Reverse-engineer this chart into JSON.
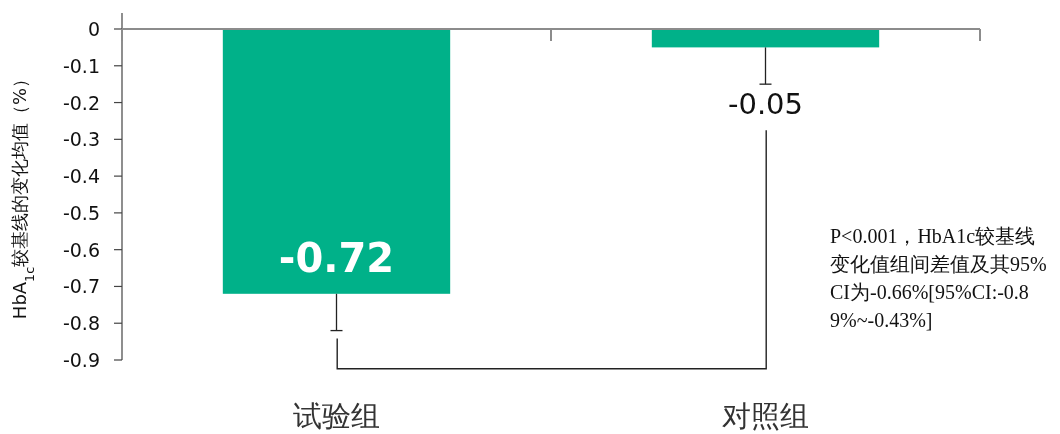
{
  "chart_data": {
    "type": "bar",
    "ylabel": "HbA$_{1c}$较基线的变化均值（%）",
    "categories": [
      "试验组",
      "对照组"
    ],
    "values": [
      -0.72,
      -0.05
    ],
    "errors": [
      [
        -0.82,
        -0.72
      ],
      [
        -0.15,
        -0.05
      ]
    ],
    "color": "#00b189",
    "data_labels": true,
    "ylim": [
      -0.9,
      0
    ],
    "yticks": [
      0,
      -0.1,
      -0.2,
      -0.3,
      -0.4,
      -0.5,
      -0.6,
      -0.7,
      -0.8,
      -0.9
    ],
    "grid": false,
    "annotations": [
      "P<0.001，HbA1c较基线变化值组间差值及其95%CI为-0.66%[95%CI:-0.89%~-0.43%]"
    ]
  }
}
